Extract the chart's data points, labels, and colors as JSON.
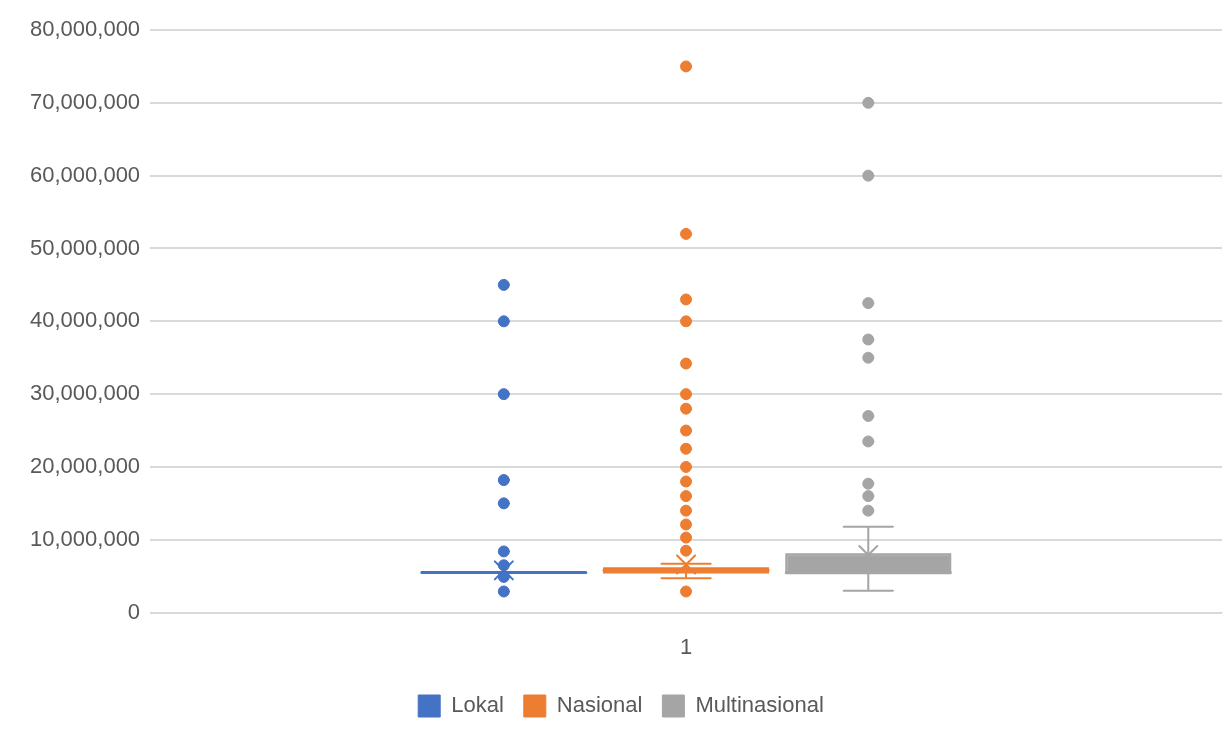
{
  "chart_data": {
    "type": "box",
    "categories": [
      "1"
    ],
    "ylim": [
      0,
      80000000
    ],
    "yticks": [
      0,
      {
        "value": 10000000,
        "label": "10,000,000"
      },
      {
        "value": 20000000,
        "label": "20,000,000"
      },
      {
        "value": 30000000,
        "label": "30,000,000"
      },
      {
        "value": 40000000,
        "label": "40,000,000"
      },
      {
        "value": 50000000,
        "label": "50,000,000"
      },
      {
        "value": 60000000,
        "label": "60,000,000"
      },
      {
        "value": 70000000,
        "label": "70,000,000"
      },
      {
        "value": 80000000,
        "label": "80,000,000"
      }
    ],
    "grid": "y",
    "legend": "bottom",
    "marker": "circle",
    "series": [
      {
        "name": "Lokal",
        "color": "#4472c4",
        "boxes": [
          {
            "low": 5500000,
            "q1": 5500000,
            "median": 5500000,
            "q3": 5500000,
            "high": 5500000,
            "mean": 5800000,
            "outliers": [
              45000000,
              40000000,
              30000000,
              18200000,
              15000000,
              8400000,
              6500000,
              4900000,
              2900000
            ]
          }
        ]
      },
      {
        "name": "Nasional",
        "color": "#ed7d31",
        "boxes": [
          {
            "low": 4700000,
            "q1": 5500000,
            "median": 5800000,
            "q3": 6100000,
            "high": 6700000,
            "mean": 6600000,
            "outliers": [
              75000000,
              52000000,
              43000000,
              40000000,
              34200000,
              30000000,
              28000000,
              25000000,
              22500000,
              20000000,
              18000000,
              16000000,
              14000000,
              12100000,
              10300000,
              8500000,
              2900000
            ]
          }
        ]
      },
      {
        "name": "Multinasional",
        "color": "#a5a5a5",
        "boxes": [
          {
            "low": 3000000,
            "q1": 5400000,
            "median": 5500000,
            "q3": 8000000,
            "high": 11800000,
            "mean": 7900000,
            "outliers": [
              70000000,
              60000000,
              42500000,
              37500000,
              35000000,
              27000000,
              23500000,
              17700000,
              16000000,
              14000000
            ]
          }
        ]
      }
    ]
  }
}
